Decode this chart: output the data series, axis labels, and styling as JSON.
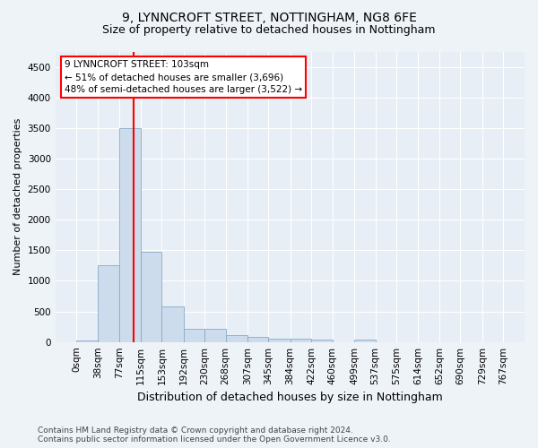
{
  "title1": "9, LYNNCROFT STREET, NOTTINGHAM, NG8 6FE",
  "title2": "Size of property relative to detached houses in Nottingham",
  "xlabel": "Distribution of detached houses by size in Nottingham",
  "ylabel": "Number of detached properties",
  "bin_edges": [
    0,
    38,
    77,
    115,
    153,
    192,
    230,
    268,
    307,
    345,
    384,
    422,
    460,
    499,
    537,
    575,
    614,
    652,
    690,
    729,
    767
  ],
  "bar_heights": [
    20,
    1250,
    3500,
    1480,
    580,
    220,
    210,
    110,
    80,
    60,
    50,
    35,
    0,
    40,
    0,
    0,
    0,
    0,
    0,
    0
  ],
  "bar_color": "#ccdcec",
  "bar_edge_color": "#88aac8",
  "red_line_x": 103,
  "ylim": [
    0,
    4750
  ],
  "yticks": [
    0,
    500,
    1000,
    1500,
    2000,
    2500,
    3000,
    3500,
    4000,
    4500
  ],
  "annotation_box_text": "9 LYNNCROFT STREET: 103sqm\n← 51% of detached houses are smaller (3,696)\n48% of semi-detached houses are larger (3,522) →",
  "footer1": "Contains HM Land Registry data © Crown copyright and database right 2024.",
  "footer2": "Contains public sector information licensed under the Open Government Licence v3.0.",
  "bg_color": "#eef3f8",
  "plot_bg_color": "#e8eef5",
  "grid_color": "#ffffff",
  "title1_fontsize": 10,
  "title2_fontsize": 9,
  "ylabel_fontsize": 8,
  "xlabel_fontsize": 9,
  "tick_fontsize": 7.5,
  "annot_fontsize": 7.5,
  "footer_fontsize": 6.5
}
